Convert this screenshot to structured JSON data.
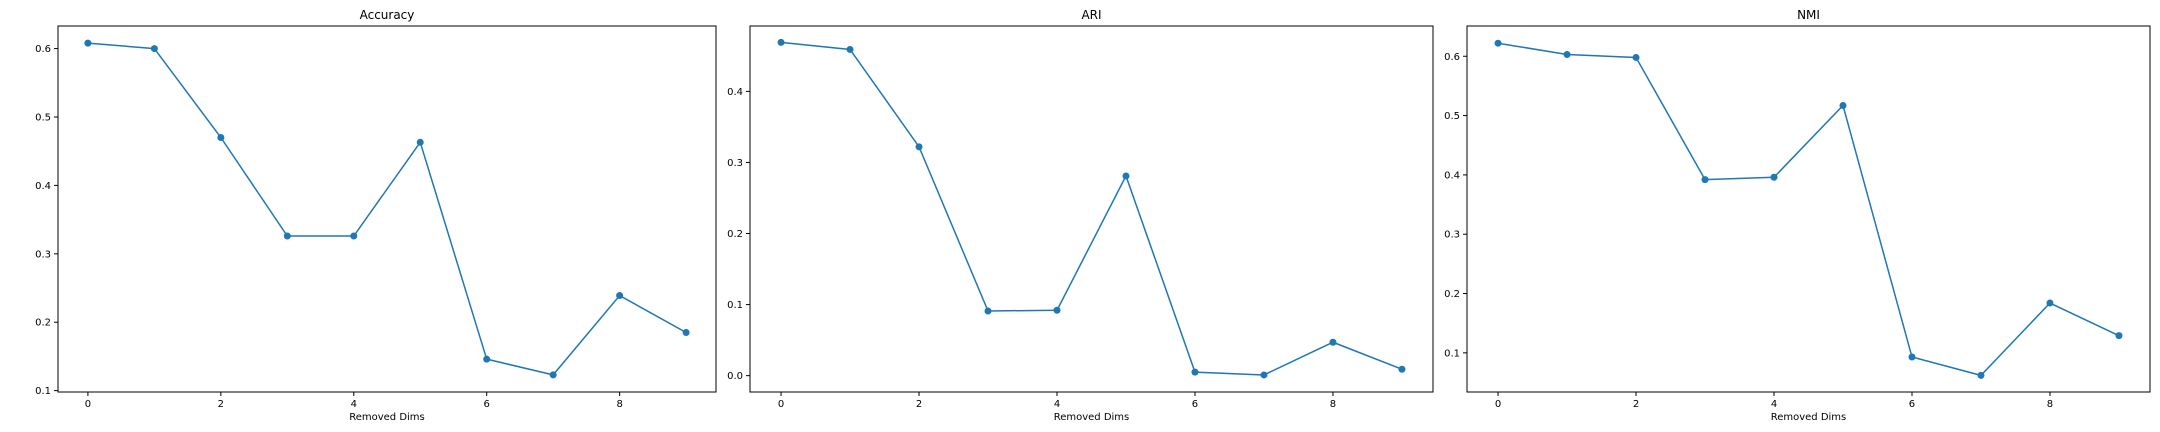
{
  "figure_background": "#ffffff",
  "series_color": "#1f77b4",
  "chart_data": [
    {
      "type": "line",
      "title": "Accuracy",
      "xlabel": "Removed Dims",
      "ylabel": "",
      "x": [
        0,
        1,
        2,
        3,
        4,
        5,
        6,
        7,
        8,
        9
      ],
      "values": [
        0.608,
        0.6,
        0.47,
        0.326,
        0.326,
        0.463,
        0.146,
        0.123,
        0.239,
        0.185
      ],
      "xlim": [
        -0.45,
        9.45
      ],
      "ylim": [
        0.098,
        0.633
      ],
      "xticks": [
        0,
        2,
        4,
        6,
        8
      ],
      "yticks": [
        0.1,
        0.2,
        0.3,
        0.4,
        0.5,
        0.6
      ],
      "ytick_labels": [
        "0.1",
        "0.2",
        "0.3",
        "0.4",
        "0.5",
        "0.6"
      ],
      "grid": false,
      "marker": "circle"
    },
    {
      "type": "line",
      "title": "ARI",
      "xlabel": "Removed Dims",
      "ylabel": "",
      "x": [
        0,
        1,
        2,
        3,
        4,
        5,
        6,
        7,
        8,
        9
      ],
      "values": [
        0.469,
        0.459,
        0.322,
        0.091,
        0.092,
        0.281,
        0.005,
        0.001,
        0.047,
        0.009
      ],
      "xlim": [
        -0.45,
        9.45
      ],
      "ylim": [
        -0.023,
        0.492
      ],
      "xticks": [
        0,
        2,
        4,
        6,
        8
      ],
      "yticks": [
        0.0,
        0.1,
        0.2,
        0.3,
        0.4
      ],
      "ytick_labels": [
        "0.0",
        "0.1",
        "0.2",
        "0.3",
        "0.4"
      ],
      "grid": false,
      "marker": "circle"
    },
    {
      "type": "line",
      "title": "NMI",
      "xlabel": "Removed Dims",
      "ylabel": "",
      "x": [
        0,
        1,
        2,
        3,
        4,
        5,
        6,
        7,
        8,
        9
      ],
      "values": [
        0.622,
        0.603,
        0.598,
        0.392,
        0.396,
        0.517,
        0.093,
        0.062,
        0.184,
        0.129
      ],
      "xlim": [
        -0.45,
        9.45
      ],
      "ylim": [
        0.034,
        0.651
      ],
      "xticks": [
        0,
        2,
        4,
        6,
        8
      ],
      "yticks": [
        0.1,
        0.2,
        0.3,
        0.4,
        0.5,
        0.6
      ],
      "ytick_labels": [
        "0.1",
        "0.2",
        "0.3",
        "0.4",
        "0.5",
        "0.6"
      ],
      "grid": false,
      "marker": "circle"
    }
  ]
}
